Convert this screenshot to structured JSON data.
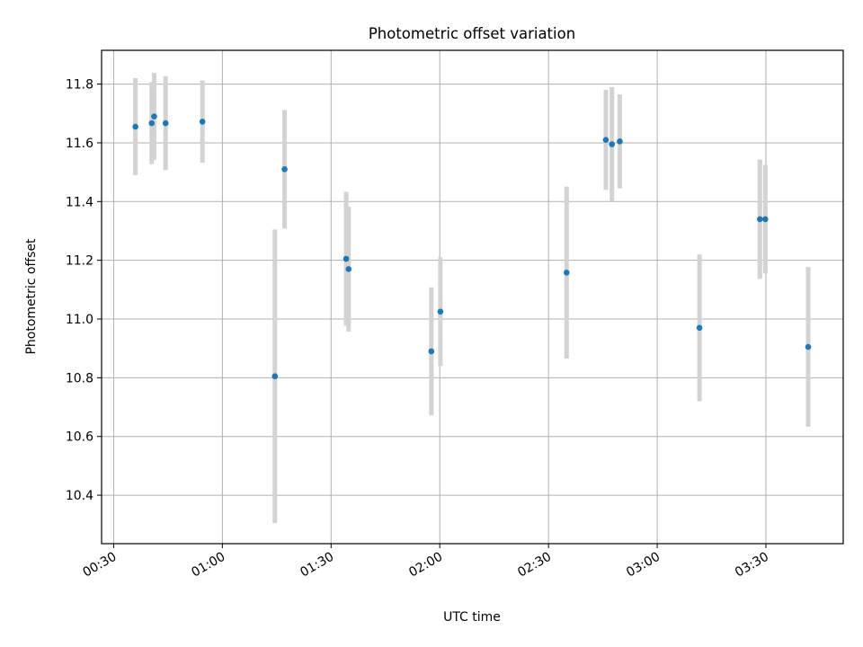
{
  "chart_data": {
    "type": "scatter",
    "title": "Photometric offset variation",
    "xlabel": "UTC time",
    "ylabel": "Photometric offset",
    "xlim": [
      "00:26:40",
      "03:51:20"
    ],
    "ylim": [
      10.235,
      11.915
    ],
    "grid": true,
    "x_ticks": [
      "00:30",
      "01:00",
      "01:30",
      "02:00",
      "02:30",
      "03:00",
      "03:30"
    ],
    "y_ticks": [
      "10.4",
      "10.6",
      "10.8",
      "11.0",
      "11.2",
      "11.4",
      "11.6",
      "11.8"
    ],
    "marker_color": "#1f77b4",
    "errorbar_color": "#d3d3d3",
    "points": [
      {
        "x": "00:36:00",
        "y": 11.655,
        "yerr": 0.165
      },
      {
        "x": "00:40:30",
        "y": 11.667,
        "yerr": 0.14
      },
      {
        "x": "00:41:10",
        "y": 11.69,
        "yerr": 0.148
      },
      {
        "x": "00:44:20",
        "y": 11.667,
        "yerr": 0.16
      },
      {
        "x": "00:54:30",
        "y": 11.672,
        "yerr": 0.14
      },
      {
        "x": "01:14:30",
        "y": 10.805,
        "yerr": 0.5
      },
      {
        "x": "01:17:10",
        "y": 11.51,
        "yerr": 0.202
      },
      {
        "x": "01:34:10",
        "y": 11.205,
        "yerr": 0.228
      },
      {
        "x": "01:34:50",
        "y": 11.17,
        "yerr": 0.213
      },
      {
        "x": "01:57:40",
        "y": 10.89,
        "yerr": 0.218
      },
      {
        "x": "02:00:10",
        "y": 11.025,
        "yerr": 0.185
      },
      {
        "x": "02:35:00",
        "y": 11.158,
        "yerr": 0.293
      },
      {
        "x": "02:45:50",
        "y": 11.61,
        "yerr": 0.17
      },
      {
        "x": "02:47:30",
        "y": 11.595,
        "yerr": 0.195
      },
      {
        "x": "02:49:40",
        "y": 11.605,
        "yerr": 0.16
      },
      {
        "x": "03:11:40",
        "y": 10.97,
        "yerr": 0.25
      },
      {
        "x": "03:28:20",
        "y": 11.34,
        "yerr": 0.203
      },
      {
        "x": "03:29:50",
        "y": 11.34,
        "yerr": 0.185
      },
      {
        "x": "03:41:40",
        "y": 10.905,
        "yerr": 0.272
      }
    ]
  }
}
